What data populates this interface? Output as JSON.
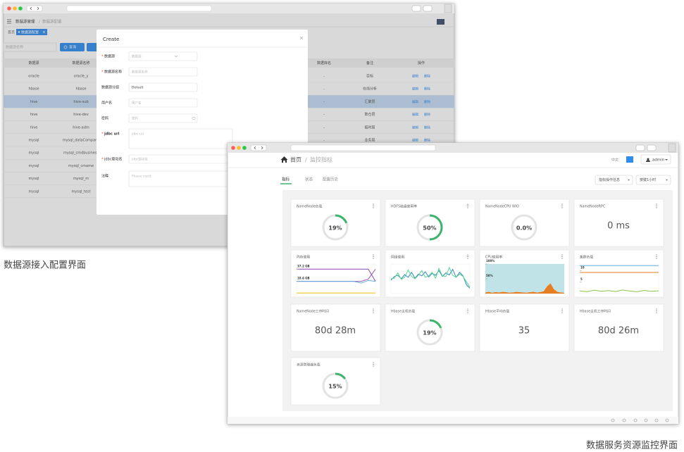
{
  "window1": {
    "breadcrumb": [
      "数据源管理",
      "数据源配置"
    ],
    "breadcrumb_separator": "/",
    "tabs": [
      "首页",
      "数据源配置"
    ],
    "search_placeholder": "数据源名称",
    "search_button": "查询",
    "table": {
      "headers": [
        "数据源",
        "数据源名称",
        "数据库名",
        "备注",
        "操作"
      ],
      "rows": [
        {
          "source": "oracle",
          "name": "oracle_y",
          "db": "-",
          "note": "目标"
        },
        {
          "source": "hbase",
          "name": "hbase",
          "db": "-",
          "note": "在线分析"
        },
        {
          "source": "hive",
          "name": "hive-sub",
          "db": "-",
          "note": "汇聚层",
          "selected": true
        },
        {
          "source": "hive",
          "name": "hive-dev",
          "db": "-",
          "note": "数仓层"
        },
        {
          "source": "hive",
          "name": "hive-adm",
          "db": "-",
          "note": "临时层"
        },
        {
          "source": "mysql",
          "name": "mysql_dataCompany",
          "db": "-",
          "note": "业务层"
        },
        {
          "source": "mysql",
          "name": "mysql_cmdbusiness"
        },
        {
          "source": "mysql",
          "name": "mysql_cmame"
        },
        {
          "source": "mysql",
          "name": "mysql_m"
        },
        {
          "source": "mysql",
          "name": "mysql_test"
        }
      ],
      "row_actions": [
        "编辑",
        "删除"
      ]
    },
    "modal": {
      "title": "Create",
      "required_mark": "*",
      "fields": [
        {
          "label": "数据源",
          "required": true,
          "kind": "select",
          "placeholder": "数据源"
        },
        {
          "label": "数据源名称",
          "required": true,
          "kind": "input",
          "placeholder": "数据源名称"
        },
        {
          "label": "数据源分组",
          "required": false,
          "kind": "input",
          "text": "Default"
        },
        {
          "label": "用户名",
          "required": false,
          "kind": "input",
          "placeholder": "用户名"
        },
        {
          "label": "密码",
          "required": false,
          "kind": "password",
          "placeholder": "密码"
        },
        {
          "label": "jdbc url",
          "required": true,
          "kind": "textarea",
          "placeholder": "jdbc url"
        },
        {
          "label": "jdbc驱动名",
          "required": true,
          "kind": "input",
          "placeholder": "jdbc驱动名"
        },
        {
          "label": "注释",
          "required": false,
          "kind": "textarea",
          "placeholder": "Please input"
        }
      ]
    }
  },
  "window2": {
    "breadcrumb": [
      "首页",
      "监控指标"
    ],
    "breadcrumb_separator": "/",
    "language": "中文",
    "user": "admin",
    "tabs": [
      "指标",
      "状态",
      "配置历史"
    ],
    "active_tab": 0,
    "buttons": [
      "指标操作信息",
      "按键1小时"
    ],
    "cards": [
      {
        "title": "NameNode负载",
        "kind": "gauge",
        "value": 19,
        "label": "19%"
      },
      {
        "title": "HDFS磁盘使用率",
        "kind": "gauge",
        "value": 50,
        "label": "50%"
      },
      {
        "title": "NameNodeCPU WIO",
        "kind": "gauge",
        "value": 0.0,
        "label": "0.0%"
      },
      {
        "title": "NameNodeRPC",
        "kind": "text",
        "text": "0 ms"
      },
      {
        "title": "内存使用",
        "kind": "chart",
        "chart": {
          "type": "line",
          "ylim": [
            0,
            45
          ],
          "yticks": [
            {
              "value": 37.2,
              "label": "37.2 GB"
            },
            {
              "value": 18.6,
              "label": "18.6 GB"
            }
          ],
          "series": [
            {
              "color": "#8e44ad",
              "values": [
                37.2,
                37.2,
                37.2,
                37.2,
                37.2,
                37.2,
                37.2,
                37.2,
                37.2,
                37.2,
                37.2,
                18.6
              ]
            },
            {
              "color": "#9b59b6",
              "values": [
                18.6,
                18.6,
                18.6,
                18.6,
                18.6,
                18.6,
                18.6,
                18.6,
                18.6,
                18.6,
                22,
                37.2
              ]
            },
            {
              "color": "#5dade2",
              "values": [
                18.6,
                18.6,
                18.6,
                18.6,
                18.6,
                18.6,
                18.6,
                18.6,
                18.6,
                16,
                20,
                18.6
              ]
            },
            {
              "color": "#f1c40f",
              "values": [
                1,
                1,
                1,
                1,
                1,
                1,
                1,
                1,
                1,
                1,
                1,
                1
              ]
            }
          ]
        }
      },
      {
        "title": "网络使用",
        "kind": "chart",
        "chart": {
          "type": "line",
          "ylim": [
            0,
            100
          ],
          "series": [
            {
              "color": "#2e86c1",
              "values": [
                45,
                58,
                62,
                50,
                64,
                55,
                72,
                52,
                66,
                60,
                74,
                56,
                68,
                62,
                78,
                58,
                70,
                63,
                82,
                55,
                72,
                60,
                30,
                18
              ]
            },
            {
              "color": "#58d68d",
              "values": [
                50,
                52,
                70,
                48,
                55,
                80,
                58,
                50,
                62,
                78,
                55,
                60,
                72,
                52,
                85,
                60,
                58,
                88,
                62,
                55,
                66,
                58,
                40,
                22
              ]
            }
          ]
        }
      },
      {
        "title": "CPU使用率",
        "kind": "chart",
        "chart": {
          "type": "area",
          "stacked": true,
          "ylim": [
            0,
            100
          ],
          "yticks": [
            {
              "value": 100,
              "label": "100%"
            },
            {
              "value": 50,
              "label": "50%"
            }
          ],
          "series": [
            {
              "color": "#e67e22",
              "values": [
                4,
                6,
                3,
                5,
                4,
                6,
                5,
                3,
                4,
                6,
                5,
                4,
                3,
                5,
                6,
                4,
                5,
                8,
                25,
                35,
                15,
                6,
                4,
                3
              ]
            },
            {
              "color": "#bfe3e6",
              "values": [
                96,
                94,
                97,
                95,
                96,
                94,
                95,
                97,
                96,
                94,
                95,
                96,
                97,
                95,
                94,
                96,
                95,
                92,
                75,
                65,
                85,
                94,
                96,
                97
              ]
            }
          ]
        }
      },
      {
        "title": "集群负载",
        "kind": "chart",
        "chart": {
          "type": "line",
          "ylim": [
            0,
            13
          ],
          "yticks": [
            10,
            5
          ],
          "series": [
            {
              "color": "#5dade2",
              "values": [
                12.3,
                12.3,
                12.3,
                12.3,
                12.3,
                12.3,
                12.3,
                12.3,
                12.3,
                12.3,
                12.3,
                12.3
              ]
            },
            {
              "color": "#e67e22",
              "values": [
                9.3,
                9.3,
                9.3,
                9.3,
                9.3,
                9.3,
                9.3,
                9.3,
                9.3,
                9.3,
                9.3,
                9.3
              ]
            },
            {
              "color": "#8bc34a",
              "values": [
                1.2,
                0.8,
                1.5,
                1.0,
                1.3,
                0.9,
                1.6,
                1.1,
                0.8,
                1.4,
                1.0,
                1.2
              ]
            }
          ]
        }
      },
      {
        "title": "NameNode工作时间",
        "kind": "text",
        "text": "80d 28m"
      },
      {
        "title": "Hbase主机负载",
        "kind": "gauge",
        "value": 19,
        "label": "19%"
      },
      {
        "title": "Hbase平均负载",
        "kind": "text",
        "text": "35"
      },
      {
        "title": "Hbase主机工作时间",
        "kind": "text",
        "text": "80d 26m"
      },
      {
        "title": "资源管理器负载",
        "kind": "gauge",
        "value": 15,
        "label": "15%"
      }
    ]
  },
  "captions": [
    "数据源接入配置界面",
    "数据服务资源监控界面"
  ]
}
